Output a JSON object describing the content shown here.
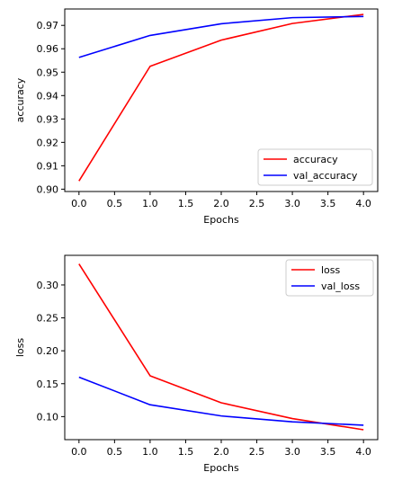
{
  "chart_data": [
    {
      "type": "line",
      "title": "",
      "xlabel": "Epochs",
      "ylabel": "accuracy",
      "x": [
        0,
        1,
        2,
        3,
        4
      ],
      "xlim": [
        -0.2,
        4.2
      ],
      "ylim": [
        0.899,
        0.977
      ],
      "xticks": [
        0.0,
        0.5,
        1.0,
        1.5,
        2.0,
        2.5,
        3.0,
        3.5,
        4.0
      ],
      "xtick_labels": [
        "0.0",
        "0.5",
        "1.0",
        "1.5",
        "2.0",
        "2.5",
        "3.0",
        "3.5",
        "4.0"
      ],
      "yticks": [
        0.9,
        0.91,
        0.92,
        0.93,
        0.94,
        0.95,
        0.96,
        0.97
      ],
      "ytick_labels": [
        "0.90",
        "0.91",
        "0.92",
        "0.93",
        "0.94",
        "0.95",
        "0.96",
        "0.97"
      ],
      "grid": false,
      "legend_position": "lower-right",
      "series": [
        {
          "name": "accuracy",
          "color": "#ff0000",
          "values": [
            0.9035,
            0.9525,
            0.9637,
            0.9708,
            0.9747
          ]
        },
        {
          "name": "val_accuracy",
          "color": "#0000ff",
          "values": [
            0.9563,
            0.9657,
            0.9707,
            0.9733,
            0.9738
          ]
        }
      ]
    },
    {
      "type": "line",
      "title": "",
      "xlabel": "Epochs",
      "ylabel": "loss",
      "x": [
        0,
        1,
        2,
        3,
        4
      ],
      "xlim": [
        -0.2,
        4.2
      ],
      "ylim": [
        0.065,
        0.345
      ],
      "xticks": [
        0.0,
        0.5,
        1.0,
        1.5,
        2.0,
        2.5,
        3.0,
        3.5,
        4.0
      ],
      "xtick_labels": [
        "0.0",
        "0.5",
        "1.0",
        "1.5",
        "2.0",
        "2.5",
        "3.0",
        "3.5",
        "4.0"
      ],
      "yticks": [
        0.1,
        0.15,
        0.2,
        0.25,
        0.3
      ],
      "ytick_labels": [
        "0.10",
        "0.15",
        "0.20",
        "0.25",
        "0.30"
      ],
      "grid": false,
      "legend_position": "upper-right",
      "series": [
        {
          "name": "loss",
          "color": "#ff0000",
          "values": [
            0.332,
            0.162,
            0.121,
            0.097,
            0.08
          ]
        },
        {
          "name": "val_loss",
          "color": "#0000ff",
          "values": [
            0.16,
            0.118,
            0.101,
            0.092,
            0.087
          ]
        }
      ]
    }
  ]
}
